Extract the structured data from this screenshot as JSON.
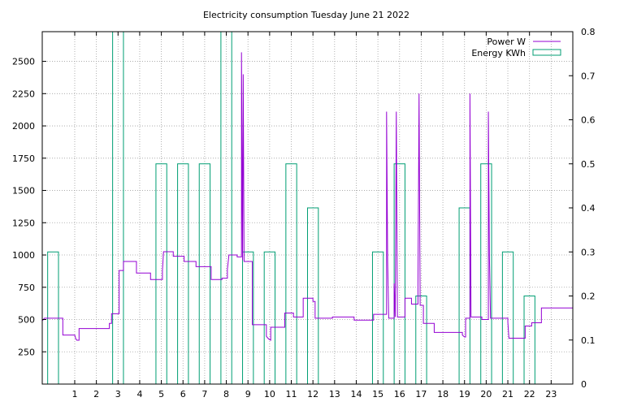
{
  "chart_data": {
    "type": "line",
    "title": "Electricity consumption Tuesday June 21 2022",
    "grid": true,
    "legend_position": "top-right",
    "colors": {
      "power": "#9400d3",
      "energy": "#009e73",
      "grid": "#a0a0a0",
      "axis": "#000000"
    },
    "x": {
      "min": -0.5,
      "max": 24.0,
      "ticks": [
        1,
        2,
        3,
        4,
        5,
        6,
        7,
        8,
        9,
        10,
        11,
        12,
        13,
        14,
        15,
        16,
        17,
        18,
        19,
        20,
        21,
        22,
        23
      ]
    },
    "y_left": {
      "min": 0,
      "max": 2730,
      "ticks": [
        250,
        500,
        750,
        1000,
        1250,
        1500,
        1750,
        2000,
        2250,
        2500
      ]
    },
    "y_right": {
      "min": 0,
      "max": 0.8,
      "ticks": [
        0,
        0.1,
        0.2,
        0.3,
        0.4,
        0.5,
        0.6,
        0.7,
        0.8
      ],
      "tick_labels": [
        "0",
        "0.1",
        "0.2",
        "0.3",
        "0.4",
        "0.5",
        "0.6",
        "0.7",
        "0.8"
      ]
    },
    "series": [
      {
        "name": "Power W",
        "axis": "left",
        "style": "steps",
        "points": [
          [
            -0.5,
            490
          ],
          [
            -0.4,
            510
          ],
          [
            0.45,
            510
          ],
          [
            0.45,
            380
          ],
          [
            1.0,
            380
          ],
          [
            1.05,
            350
          ],
          [
            1.1,
            340
          ],
          [
            1.2,
            340
          ],
          [
            1.2,
            430
          ],
          [
            2.6,
            430
          ],
          [
            2.6,
            470
          ],
          [
            2.7,
            470
          ],
          [
            2.7,
            545
          ],
          [
            3.05,
            545
          ],
          [
            3.05,
            880
          ],
          [
            3.25,
            880
          ],
          [
            3.25,
            950
          ],
          [
            3.85,
            950
          ],
          [
            3.85,
            860
          ],
          [
            4.5,
            860
          ],
          [
            4.5,
            810
          ],
          [
            5.05,
            810
          ],
          [
            5.05,
            880
          ],
          [
            5.1,
            1025
          ],
          [
            5.55,
            1025
          ],
          [
            5.55,
            990
          ],
          [
            6.05,
            990
          ],
          [
            6.05,
            950
          ],
          [
            6.6,
            950
          ],
          [
            6.6,
            910
          ],
          [
            7.3,
            910
          ],
          [
            7.3,
            810
          ],
          [
            7.8,
            810
          ],
          [
            7.8,
            820
          ],
          [
            8.05,
            820
          ],
          [
            8.05,
            890
          ],
          [
            8.12,
            1000
          ],
          [
            8.5,
            1000
          ],
          [
            8.5,
            985
          ],
          [
            8.7,
            985
          ],
          [
            8.7,
            2570
          ],
          [
            8.75,
            960
          ],
          [
            8.78,
            2400
          ],
          [
            8.82,
            950
          ],
          [
            9.2,
            950
          ],
          [
            9.2,
            460
          ],
          [
            9.85,
            460
          ],
          [
            9.85,
            370
          ],
          [
            9.95,
            350
          ],
          [
            10.05,
            340
          ],
          [
            10.05,
            440
          ],
          [
            10.7,
            440
          ],
          [
            10.7,
            550
          ],
          [
            11.1,
            550
          ],
          [
            11.1,
            520
          ],
          [
            11.55,
            520
          ],
          [
            11.55,
            665
          ],
          [
            12.0,
            665
          ],
          [
            12.0,
            640
          ],
          [
            12.1,
            640
          ],
          [
            12.1,
            510
          ],
          [
            12.9,
            510
          ],
          [
            12.9,
            520
          ],
          [
            13.9,
            520
          ],
          [
            13.9,
            495
          ],
          [
            14.8,
            495
          ],
          [
            14.8,
            540
          ],
          [
            15.4,
            540
          ],
          [
            15.4,
            2110
          ],
          [
            15.45,
            950
          ],
          [
            15.5,
            510
          ],
          [
            15.75,
            510
          ],
          [
            15.75,
            780
          ],
          [
            15.8,
            520
          ],
          [
            15.85,
            2110
          ],
          [
            15.9,
            520
          ],
          [
            16.25,
            520
          ],
          [
            16.25,
            665
          ],
          [
            16.55,
            665
          ],
          [
            16.55,
            620
          ],
          [
            16.85,
            620
          ],
          [
            16.85,
            770
          ],
          [
            16.9,
            2250
          ],
          [
            16.95,
            610
          ],
          [
            17.1,
            610
          ],
          [
            17.1,
            470
          ],
          [
            17.6,
            470
          ],
          [
            17.6,
            400
          ],
          [
            18.9,
            400
          ],
          [
            18.9,
            380
          ],
          [
            19.0,
            365
          ],
          [
            19.05,
            365
          ],
          [
            19.05,
            510
          ],
          [
            19.25,
            510
          ],
          [
            19.25,
            2250
          ],
          [
            19.3,
            520
          ],
          [
            19.8,
            520
          ],
          [
            19.8,
            500
          ],
          [
            20.1,
            500
          ],
          [
            20.1,
            2110
          ],
          [
            20.15,
            980
          ],
          [
            20.2,
            510
          ],
          [
            21.0,
            510
          ],
          [
            21.0,
            480
          ],
          [
            21.05,
            355
          ],
          [
            21.8,
            355
          ],
          [
            21.8,
            450
          ],
          [
            22.1,
            450
          ],
          [
            22.1,
            475
          ],
          [
            22.55,
            475
          ],
          [
            22.55,
            590
          ],
          [
            24.0,
            590
          ]
        ]
      },
      {
        "name": "Energy KWh",
        "axis": "right",
        "style": "bars",
        "bars": [
          {
            "x": 0,
            "value": 0.3
          },
          {
            "x": 3,
            "value": 0.8
          },
          {
            "x": 5,
            "value": 0.5
          },
          {
            "x": 6,
            "value": 0.5
          },
          {
            "x": 7,
            "value": 0.5
          },
          {
            "x": 8,
            "value": 0.8
          },
          {
            "x": 9,
            "value": 0.3
          },
          {
            "x": 10,
            "value": 0.3
          },
          {
            "x": 11,
            "value": 0.5
          },
          {
            "x": 12,
            "value": 0.4
          },
          {
            "x": 15,
            "value": 0.3
          },
          {
            "x": 16,
            "value": 0.5
          },
          {
            "x": 17,
            "value": 0.2
          },
          {
            "x": 19,
            "value": 0.4
          },
          {
            "x": 20,
            "value": 0.5
          },
          {
            "x": 21,
            "value": 0.3
          },
          {
            "x": 22,
            "value": 0.2
          }
        ]
      }
    ]
  }
}
